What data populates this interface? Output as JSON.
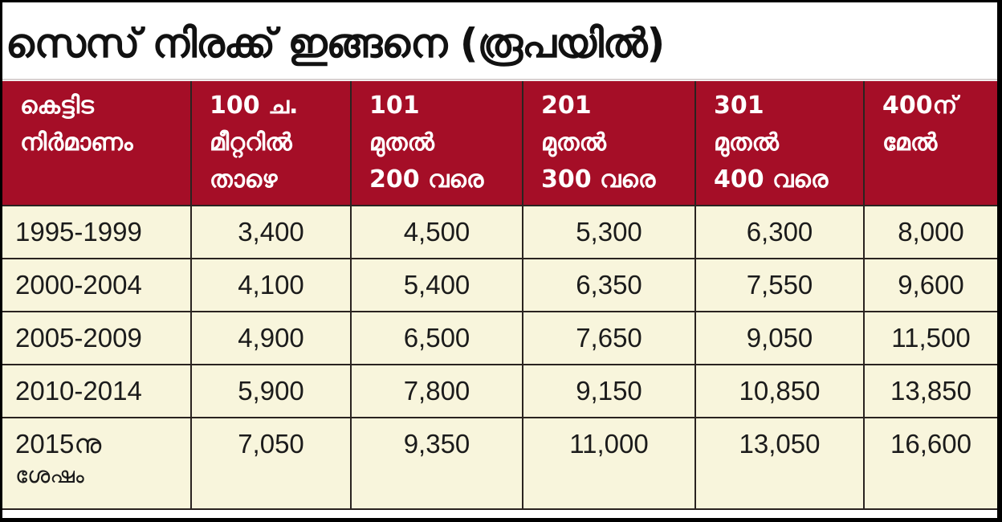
{
  "title": "സെസ് നിരക്ക് ഇങ്ങനെ (രൂപയിൽ)",
  "colors": {
    "header_bg": "#a50e27",
    "row_bg": "#f8f5dc",
    "border": "#2a2320",
    "title_text": "#111111"
  },
  "table": {
    "headers": [
      {
        "lines": [
          "കെട്ടിട",
          "നിർമാണം"
        ]
      },
      {
        "lines": [
          "100 ച.",
          "മീറ്ററിൽ",
          "താഴെ"
        ]
      },
      {
        "lines": [
          "101",
          "മുതൽ",
          "200 വരെ"
        ]
      },
      {
        "lines": [
          "201",
          "മുതൽ",
          "300 വരെ"
        ]
      },
      {
        "lines": [
          "301",
          "മുതൽ",
          "400 വരെ"
        ]
      },
      {
        "lines": [
          "400ന്",
          "മേൽ"
        ]
      }
    ],
    "rows": [
      {
        "period": "1995-1999",
        "period_sub": "",
        "values": [
          "3,400",
          "4,500",
          "5,300",
          "6,300",
          "8,000"
        ]
      },
      {
        "period": "2000-2004",
        "period_sub": "",
        "values": [
          "4,100",
          "5,400",
          "6,350",
          "7,550",
          "9,600"
        ]
      },
      {
        "period": "2005-2009",
        "period_sub": "",
        "values": [
          "4,900",
          "6,500",
          "7,650",
          "9,050",
          "11,500"
        ]
      },
      {
        "period": "2010-2014",
        "period_sub": "",
        "values": [
          "5,900",
          "7,800",
          "9,150",
          "10,850",
          "13,850"
        ]
      },
      {
        "period": "2015നു",
        "period_sub": "ശേഷം",
        "values": [
          "7,050",
          "9,350",
          "11,000",
          "13,050",
          "16,600"
        ]
      }
    ]
  }
}
